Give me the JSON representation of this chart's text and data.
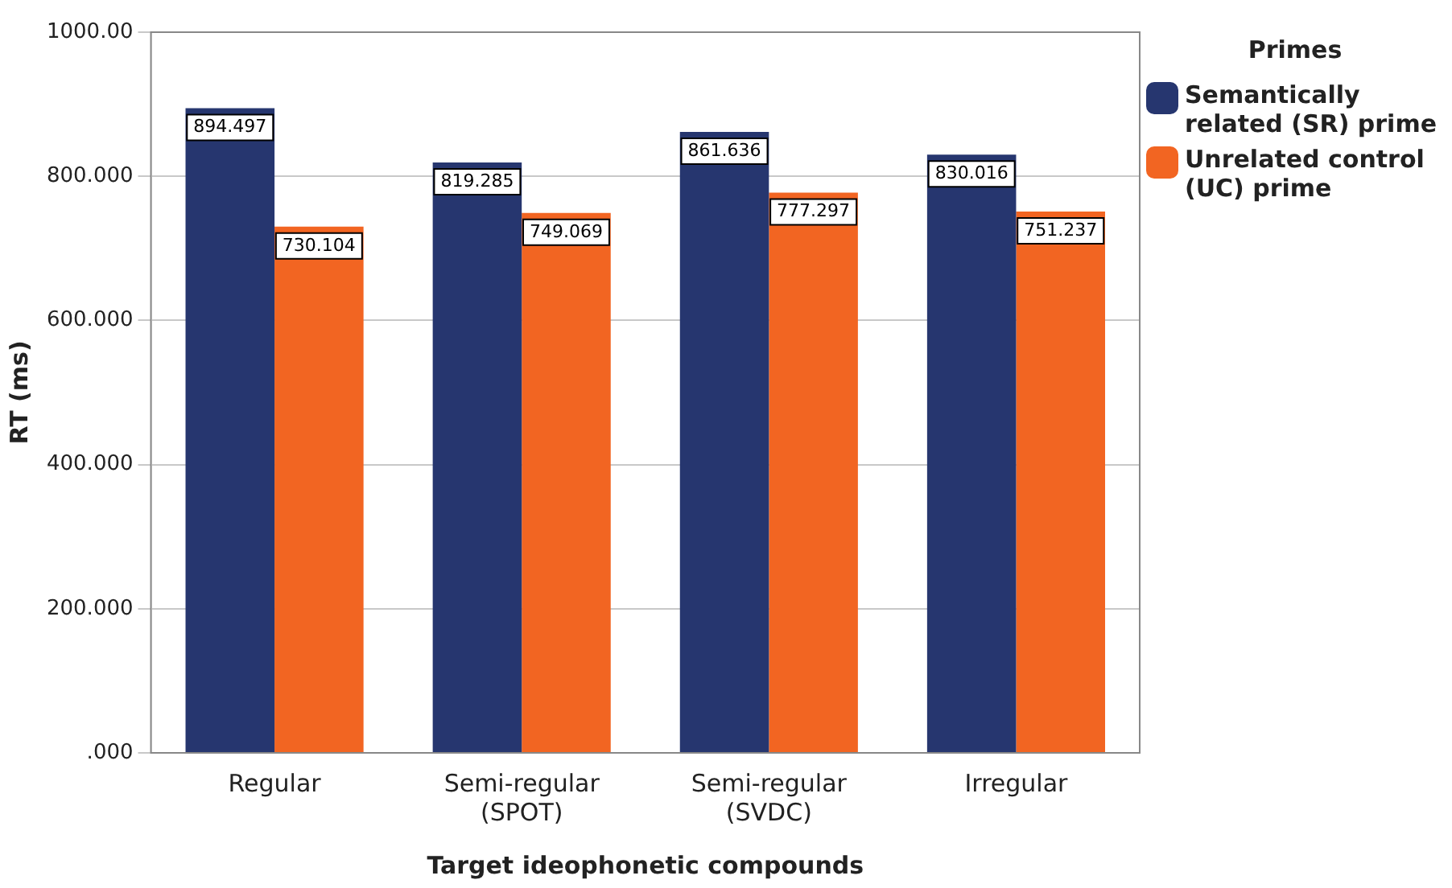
{
  "chart_data": {
    "type": "bar",
    "xlabel": "Target ideophonetic compounds",
    "ylabel": "RT (ms)",
    "legend_title": "Primes",
    "categories": [
      "Regular",
      "Semi-regular (SPOT)",
      "Semi-regular (SVDC)",
      "Irregular"
    ],
    "series": [
      {
        "name": "Semantically related (SR) prime",
        "color": "#26366f",
        "values": [
          894.497,
          819.285,
          861.636,
          830.016
        ]
      },
      {
        "name": "Unrelated control (UC) prime",
        "color": "#f26522",
        "values": [
          730.104,
          749.069,
          777.297,
          751.237
        ]
      }
    ],
    "ylim": [
      0,
      1000
    ],
    "yticks": [
      {
        "value": 0,
        "label": ".000"
      },
      {
        "value": 200,
        "label": "200.000"
      },
      {
        "value": 400,
        "label": "400.000"
      },
      {
        "value": 600,
        "label": "600.000"
      },
      {
        "value": 800,
        "label": "800.000"
      },
      {
        "value": 1000,
        "label": "1000.00"
      }
    ],
    "grid": "y",
    "legend": "right",
    "data_labels": true
  }
}
